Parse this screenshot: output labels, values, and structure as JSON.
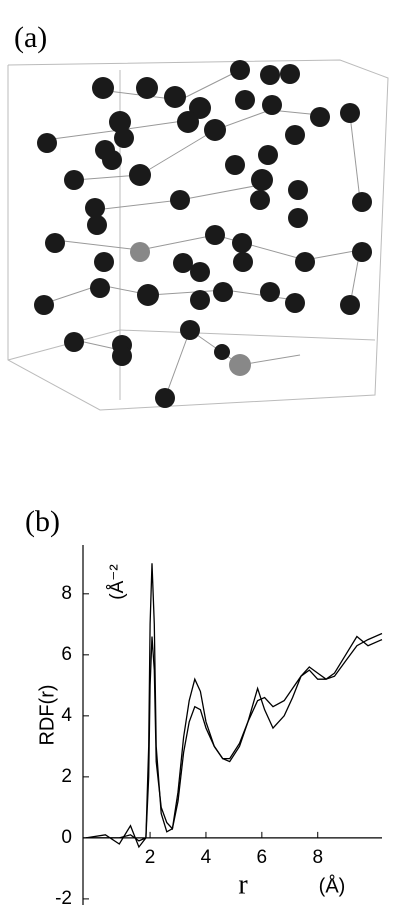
{
  "panel_labels": [
    "(a)",
    "(b)"
  ],
  "chart_data": {
    "type": "line",
    "y_label": "RDF(r)",
    "y_unit": "(Å⁻²",
    "x_label": "r",
    "x_unit": "(Å)",
    "x": [
      -0.3,
      0.4,
      0.9,
      1.3,
      1.6,
      1.85,
      1.95,
      2.0,
      2.07,
      2.15,
      2.22,
      2.4,
      2.6,
      2.8,
      3.0,
      3.2,
      3.4,
      3.6,
      3.8,
      4.0,
      4.3,
      4.6,
      4.85,
      5.2,
      5.5,
      5.85,
      6.1,
      6.4,
      6.8,
      7.1,
      7.4,
      7.7,
      8.0,
      8.3,
      8.6,
      9.0,
      9.4,
      9.8,
      10.3
    ],
    "series": [
      {
        "color": "#000000",
        "values": [
          0,
          0.1,
          -0.2,
          0.4,
          -0.3,
          0,
          3,
          7,
          9,
          7,
          3,
          0.8,
          0.2,
          0.3,
          1.5,
          3.3,
          4.5,
          5.2,
          4.8,
          3.8,
          3.0,
          2.6,
          2.6,
          3.1,
          3.8,
          4.9,
          4.2,
          3.6,
          4.0,
          4.6,
          5.3,
          5.5,
          5.2,
          5.2,
          5.4,
          6.0,
          6.6,
          6.3,
          6.5
        ]
      },
      {
        "color": "#000000",
        "values": [
          0,
          0,
          0,
          0.1,
          -0.1,
          0,
          2,
          5,
          6.6,
          5.5,
          2.5,
          1,
          0.5,
          0.3,
          1.2,
          2.8,
          3.8,
          4.3,
          4.2,
          3.6,
          3.0,
          2.6,
          2.5,
          3.0,
          3.8,
          4.5,
          4.6,
          4.3,
          4.5,
          4.9,
          5.3,
          5.6,
          5.4,
          5.2,
          5.3,
          5.8,
          6.3,
          6.5,
          6.7
        ]
      }
    ],
    "xlim": [
      -0.4,
      10.3
    ],
    "ylim": [
      -2.2,
      9.6
    ],
    "xticks": [
      2,
      4,
      6,
      8
    ],
    "yticks": [
      -2,
      0,
      2,
      4,
      6,
      8
    ]
  }
}
